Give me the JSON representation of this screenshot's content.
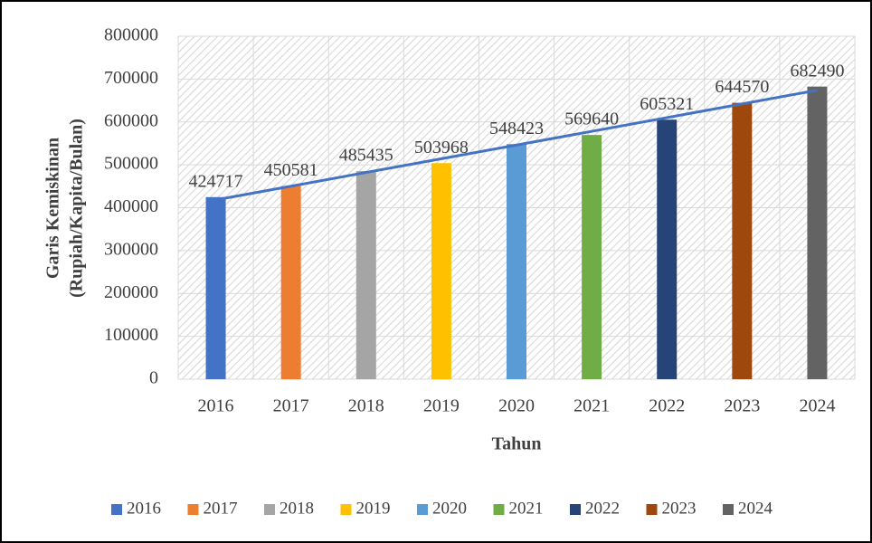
{
  "chart_data": {
    "type": "bar",
    "y_label": [
      "Garis Kemiskinan",
      "(Rupiah/Kapita/Bulan)"
    ],
    "x_label": "Tahun",
    "categories": [
      "2016",
      "2017",
      "2018",
      "2019",
      "2020",
      "2021",
      "2022",
      "2023",
      "2024"
    ],
    "values": [
      424717,
      450581,
      485435,
      503968,
      548423,
      569640,
      605321,
      644570,
      682490
    ],
    "colors": [
      "#4472c4",
      "#ed7d31",
      "#a5a5a5",
      "#ffc000",
      "#5b9bd5",
      "#70ad47",
      "#264478",
      "#9e480e",
      "#636363"
    ],
    "ylim": [
      0,
      800000
    ],
    "yticks": [
      0,
      100000,
      200000,
      300000,
      400000,
      500000,
      600000,
      700000,
      800000
    ],
    "grid": true,
    "trendline": "linear",
    "trendline_color": "#4472c4",
    "legend": "bottom"
  }
}
